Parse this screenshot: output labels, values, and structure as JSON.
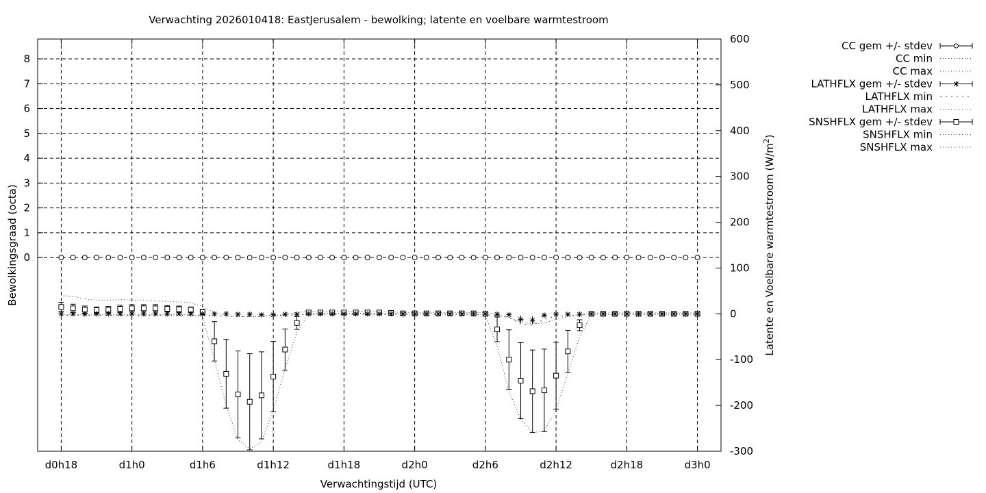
{
  "chart_data": {
    "type": "line",
    "title": "Verwachting 2026010418: EastJerusalem - bewolking; latente en voelbare warmtestroom",
    "xlabel": "Verwachtingstijd (UTC)",
    "ylabel_left": "Bewolkingsgraad (octa)",
    "ylabel_right_prefix": "Latente en Voelbare warmtestroom (W/m",
    "ylabel_right_sup": "2",
    "ylabel_right_suffix": ")",
    "x_range_hours": [
      -2,
      56
    ],
    "y_left_range": [
      -7.8,
      8.8
    ],
    "y_right_range": [
      -300,
      600
    ],
    "grid": true,
    "legend_position": "top-right outside",
    "x_ticks": [
      {
        "h": 0,
        "label": "d0h18"
      },
      {
        "h": 6,
        "label": "d1h0"
      },
      {
        "h": 12,
        "label": "d1h6"
      },
      {
        "h": 18,
        "label": "d1h12"
      },
      {
        "h": 24,
        "label": "d1h18"
      },
      {
        "h": 30,
        "label": "d2h0"
      },
      {
        "h": 36,
        "label": "d2h6"
      },
      {
        "h": 42,
        "label": "d2h12"
      },
      {
        "h": 48,
        "label": "d2h18"
      },
      {
        "h": 54,
        "label": "d3h0"
      }
    ],
    "y_left_ticks": [
      "0",
      "1",
      "2",
      "3",
      "4",
      "5",
      "6",
      "7",
      "8"
    ],
    "y_right_ticks": [
      "-300",
      "-200",
      "-100",
      "0",
      "100",
      "200",
      "300",
      "400",
      "500",
      "600"
    ],
    "legend": [
      {
        "label": "CC gem +/- stdev",
        "style": "circle"
      },
      {
        "label": "CC min",
        "style": "dotted"
      },
      {
        "label": "CC max",
        "style": "dotted"
      },
      {
        "label": "LATHFLX gem +/- stdev",
        "style": "star"
      },
      {
        "label": "LATHFLX min",
        "style": "dotted-coarse"
      },
      {
        "label": "LATHFLX max",
        "style": "dotted"
      },
      {
        "label": "SNSHFLX gem +/- stdev",
        "style": "square"
      },
      {
        "label": "SNSHFLX min",
        "style": "dotted"
      },
      {
        "label": "SNSHFLX max",
        "style": "dotted"
      }
    ],
    "series": [
      {
        "name": "CC gem +/- stdev",
        "axis": "left",
        "x": [
          0,
          1,
          2,
          3,
          4,
          5,
          6,
          7,
          8,
          9,
          10,
          11,
          12,
          13,
          14,
          15,
          16,
          17,
          18,
          19,
          20,
          21,
          22,
          23,
          24,
          25,
          26,
          27,
          28,
          29,
          30,
          31,
          32,
          33,
          34,
          35,
          36,
          37,
          38,
          39,
          40,
          41,
          42,
          43,
          44,
          45,
          46,
          47,
          48,
          49,
          50,
          51,
          52,
          53,
          54
        ],
        "values": [
          0,
          0,
          0,
          0,
          0,
          0,
          0,
          0,
          0,
          0,
          0,
          0,
          0,
          0,
          0,
          0,
          0,
          0,
          0,
          0,
          0,
          0,
          0,
          0,
          0,
          0,
          0,
          0,
          0,
          0,
          0,
          0,
          0,
          0,
          0,
          0,
          0,
          0,
          0,
          0,
          0,
          0,
          0,
          0,
          0,
          0,
          0,
          0,
          0,
          0,
          0,
          0,
          0,
          0,
          0
        ]
      },
      {
        "name": "LATHFLX gem +/- stdev",
        "axis": "right",
        "x": [
          0,
          1,
          2,
          3,
          4,
          5,
          6,
          7,
          8,
          9,
          10,
          11,
          12,
          13,
          14,
          15,
          16,
          17,
          18,
          19,
          20,
          21,
          22,
          23,
          24,
          25,
          26,
          27,
          28,
          29,
          30,
          31,
          32,
          33,
          34,
          35,
          36,
          37,
          38,
          39,
          40,
          41,
          42,
          43,
          44,
          45,
          46,
          47,
          48,
          49,
          50,
          51,
          52,
          53,
          54
        ],
        "values": [
          0,
          0,
          0,
          0,
          0,
          0,
          0,
          0,
          0,
          0,
          0,
          0,
          0,
          0,
          0,
          -1,
          -1,
          -2,
          -2,
          -1,
          -1,
          0,
          0,
          0,
          0,
          0,
          0,
          0,
          0,
          0,
          0,
          0,
          0,
          0,
          0,
          0,
          0,
          -1,
          -2,
          -12,
          -14,
          -3,
          -1,
          -1,
          -1,
          0,
          0,
          0,
          0,
          0,
          0,
          0,
          0,
          0,
          0
        ],
        "stdev": [
          4,
          3,
          3,
          3,
          3,
          3,
          3,
          3,
          3,
          3,
          3,
          3,
          3,
          2,
          2,
          2,
          2,
          2,
          2,
          2,
          2,
          2,
          2,
          1,
          1,
          1,
          1,
          1,
          1,
          1,
          1,
          1,
          1,
          1,
          1,
          1,
          1,
          2,
          3,
          8,
          9,
          4,
          2,
          2,
          2,
          1,
          1,
          1,
          1,
          1,
          1,
          1,
          1,
          1,
          1
        ]
      },
      {
        "name": "SNSHFLX gem +/- stdev",
        "axis": "right",
        "x": [
          0,
          1,
          2,
          3,
          4,
          5,
          6,
          7,
          8,
          9,
          10,
          11,
          12,
          13,
          14,
          15,
          16,
          17,
          18,
          19,
          20,
          21,
          22,
          23,
          24,
          25,
          26,
          27,
          28,
          29,
          30,
          31,
          32,
          33,
          34,
          35,
          36,
          37,
          38,
          39,
          40,
          41,
          42,
          43,
          44,
          45,
          46,
          47,
          48,
          49,
          50,
          51,
          52,
          53,
          54
        ],
        "values": [
          15,
          12,
          9,
          8,
          9,
          11,
          12,
          12,
          12,
          11,
          10,
          9,
          4,
          -60,
          -131,
          -176,
          -192,
          -178,
          -137,
          -78,
          -20,
          3,
          3,
          3,
          3,
          3,
          3,
          3,
          2,
          1,
          1,
          1,
          1,
          1,
          1,
          1,
          0,
          -34,
          -100,
          -146,
          -169,
          -167,
          -135,
          -82,
          -25,
          0,
          0,
          0,
          0,
          0,
          0,
          0,
          0,
          0,
          0
        ],
        "stdev": [
          10,
          9,
          8,
          7,
          7,
          8,
          8,
          8,
          8,
          7,
          7,
          6,
          6,
          43,
          75,
          95,
          105,
          95,
          77,
          45,
          14,
          3,
          3,
          3,
          3,
          3,
          3,
          3,
          3,
          2,
          2,
          2,
          2,
          2,
          2,
          2,
          2,
          27,
          65,
          83,
          90,
          90,
          73,
          46,
          12,
          2,
          2,
          2,
          2,
          2,
          2,
          2,
          2,
          2,
          2
        ]
      },
      {
        "name": "SNSHFLX max",
        "axis": "right",
        "x": [
          0,
          1,
          2,
          3,
          4,
          5,
          6,
          7,
          8,
          9,
          10,
          11,
          12,
          13,
          14,
          15,
          16,
          17,
          18,
          19,
          20,
          21,
          22,
          23,
          24,
          25,
          26,
          27,
          28,
          29,
          30,
          31,
          32,
          33,
          34,
          35,
          36,
          37,
          38,
          39,
          40,
          41,
          42,
          43,
          44,
          45,
          46,
          47,
          48,
          49,
          50,
          51,
          52,
          53,
          54
        ],
        "values": [
          40,
          38,
          32,
          30,
          30,
          31,
          30,
          30,
          28,
          27,
          26,
          24,
          16,
          2,
          -4,
          -6,
          -6,
          -5,
          -4,
          -2,
          3,
          5,
          5,
          5,
          5,
          5,
          5,
          5,
          4,
          3,
          3,
          3,
          3,
          3,
          3,
          3,
          3,
          -2,
          -8,
          -18,
          -22,
          -20,
          -12,
          -6,
          -2,
          2,
          2,
          2,
          2,
          2,
          2,
          2,
          2,
          2,
          2
        ]
      },
      {
        "name": "SNSHFLX min",
        "axis": "right",
        "x": [
          0,
          1,
          2,
          3,
          4,
          5,
          6,
          7,
          8,
          9,
          10,
          11,
          12,
          13,
          14,
          15,
          16,
          17,
          18,
          19,
          20,
          21,
          22,
          23,
          24,
          25,
          26,
          27,
          28,
          29,
          30,
          31,
          32,
          33,
          34,
          35,
          36,
          37,
          38,
          39,
          40,
          41,
          42,
          43,
          44,
          45,
          46,
          47,
          48,
          49,
          50,
          51,
          52,
          53,
          54
        ],
        "values": [
          -2,
          -2,
          -2,
          -2,
          -2,
          -2,
          -2,
          -2,
          -2,
          -2,
          -2,
          -2,
          -6,
          -100,
          -200,
          -275,
          -295,
          -280,
          -210,
          -120,
          -40,
          1,
          1,
          1,
          1,
          1,
          1,
          1,
          1,
          0,
          0,
          0,
          0,
          0,
          0,
          0,
          -3,
          -70,
          -170,
          -230,
          -260,
          -255,
          -210,
          -130,
          -50,
          -1,
          -1,
          -1,
          -1,
          -1,
          -1,
          -1,
          -1,
          -1,
          -1
        ]
      },
      {
        "name": "LATHFLX min",
        "axis": "right",
        "x": [
          0,
          1,
          2,
          3,
          4,
          5,
          6,
          7,
          8,
          9,
          10,
          11,
          12,
          13,
          14,
          15,
          16,
          17,
          18,
          19,
          20,
          21,
          22,
          23,
          24,
          25,
          26,
          27,
          28,
          29,
          30,
          31,
          32,
          33,
          34,
          35,
          36,
          37,
          38,
          39,
          40,
          41,
          42,
          43,
          44,
          45,
          46,
          47,
          48,
          49,
          50,
          51,
          52,
          53,
          54
        ],
        "values": [
          -3,
          -3,
          -3,
          -3,
          -3,
          -3,
          -3,
          -3,
          -3,
          -3,
          -3,
          -3,
          -3,
          -4,
          -5,
          -6,
          -6,
          -5,
          -4,
          -3,
          -2,
          -1,
          -1,
          -1,
          -1,
          -1,
          -1,
          -1,
          -1,
          -1,
          -1,
          -1,
          -1,
          -1,
          -1,
          -1,
          -2,
          -4,
          -8,
          -22,
          -25,
          -12,
          -5,
          -4,
          -3,
          -1,
          -1,
          -1,
          -1,
          -1,
          -1,
          -1,
          -1,
          -1,
          -1
        ]
      }
    ]
  }
}
